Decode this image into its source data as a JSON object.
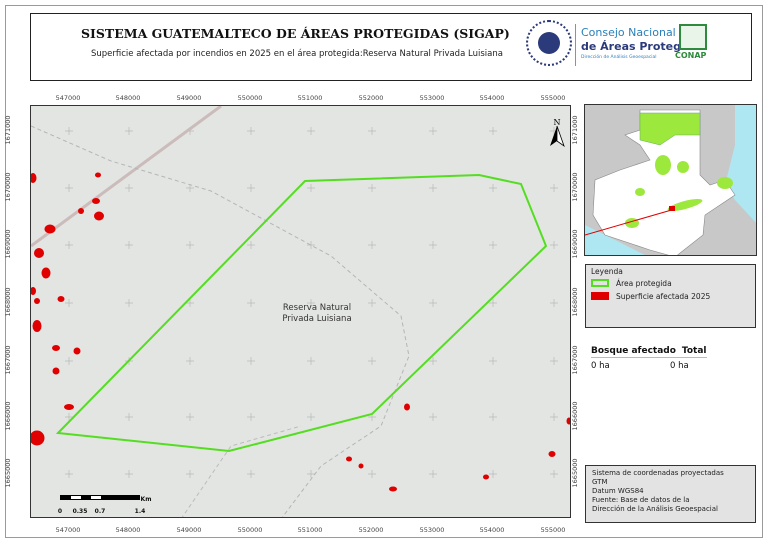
{
  "header": {
    "title": "SISTEMA GUATEMALTECO DE ÁREAS PROTEGIDAS  (SIGAP)",
    "subtitle": "Superficie afectada por incendios en 2025 en el área protegida:Reserva Natural Privada Luisiana",
    "seal_text": "GOBIERNO DE LA REPÚBLICA · GUATEMALA",
    "org_line1": "Consejo Nacional",
    "org_line2": "de Áreas Protegidas",
    "org_line3": "Dirección de Análisis Geoespacial",
    "logo_text": "CONAP"
  },
  "map": {
    "area_label": "Reserva Natural Privada Luisiana",
    "north_label": "N",
    "x_ticks": [
      "547000",
      "548000",
      "549000",
      "550000",
      "551000",
      "552000",
      "553000",
      "554000",
      "555000"
    ],
    "y_ticks": [
      "1671000",
      "1670000",
      "1669000",
      "1668000",
      "1667000",
      "1666000",
      "1665000"
    ],
    "colors": {
      "protected_area": "#55dd22",
      "fire": "#e00000",
      "background": "#e3e5e2"
    }
  },
  "scalebar": {
    "labels": [
      "0",
      "0.35",
      "0.7",
      "1.4"
    ],
    "unit": "Km"
  },
  "legend": {
    "title": "Leyenda",
    "items": [
      {
        "label": "Área protegida",
        "color": "#55dd22"
      },
      {
        "label": "Superficie afectada 2025",
        "color": "#e00000"
      }
    ]
  },
  "table": {
    "headers": [
      "Bosque afectado",
      "Total"
    ],
    "values": [
      "0 ha",
      "0 ha"
    ]
  },
  "info": {
    "lines": [
      "Sistema de coordenadas proyectadas",
      "GTM",
      "Datum WGS84",
      "Fuente: Base de datos de la",
      "Dirección de la Análisis Geoespacial"
    ]
  }
}
